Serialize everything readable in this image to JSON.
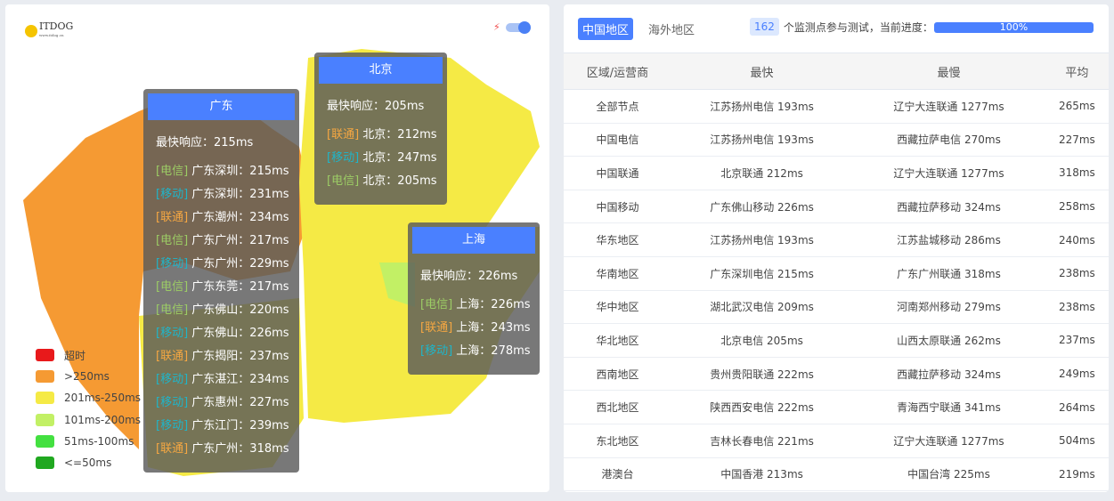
{
  "logo": {
    "text": "ITDOG",
    "sub": "www.itdog.cn"
  },
  "legend": [
    {
      "label": "超时",
      "color": "#e8191b"
    },
    {
      "label": ">250ms",
      "color": "#f59a33"
    },
    {
      "label": "201ms-250ms",
      "color": "#f5ea45"
    },
    {
      "label": "101ms-200ms",
      "color": "#c2f065"
    },
    {
      "label": "51ms-100ms",
      "color": "#43e040"
    },
    {
      "label": "<=50ms",
      "color": "#20a820"
    }
  ],
  "tooltips": {
    "guangdong": {
      "title": "广东",
      "fastest": "最快响应：215ms",
      "rows": [
        {
          "isp": "[电信]",
          "cls": "dx",
          "text": "广东深圳：215ms"
        },
        {
          "isp": "[移动]",
          "cls": "yd",
          "text": "广东深圳：231ms"
        },
        {
          "isp": "[联通]",
          "cls": "lt",
          "text": "广东潮州：234ms"
        },
        {
          "isp": "[电信]",
          "cls": "dx",
          "text": "广东广州：217ms"
        },
        {
          "isp": "[移动]",
          "cls": "yd",
          "text": "广东广州：229ms"
        },
        {
          "isp": "[电信]",
          "cls": "dx",
          "text": "广东东莞：217ms"
        },
        {
          "isp": "[电信]",
          "cls": "dx",
          "text": "广东佛山：220ms"
        },
        {
          "isp": "[移动]",
          "cls": "yd",
          "text": "广东佛山：226ms"
        },
        {
          "isp": "[联通]",
          "cls": "lt",
          "text": "广东揭阳：237ms"
        },
        {
          "isp": "[移动]",
          "cls": "yd",
          "text": "广东湛江：234ms"
        },
        {
          "isp": "[移动]",
          "cls": "yd",
          "text": "广东惠州：227ms"
        },
        {
          "isp": "[移动]",
          "cls": "yd",
          "text": "广东江门：239ms"
        },
        {
          "isp": "[联通]",
          "cls": "lt",
          "text": "广东广州：318ms"
        }
      ]
    },
    "beijing": {
      "title": "北京",
      "fastest": "最快响应：205ms",
      "rows": [
        {
          "isp": "[联通]",
          "cls": "lt",
          "text": "北京：212ms"
        },
        {
          "isp": "[移动]",
          "cls": "yd",
          "text": "北京：247ms"
        },
        {
          "isp": "[电信]",
          "cls": "dx",
          "text": "北京：205ms"
        }
      ]
    },
    "shanghai": {
      "title": "上海",
      "fastest": "最快响应：226ms",
      "rows": [
        {
          "isp": "[电信]",
          "cls": "dx",
          "text": "上海：226ms"
        },
        {
          "isp": "[联通]",
          "cls": "lt",
          "text": "上海：243ms"
        },
        {
          "isp": "[移动]",
          "cls": "yd",
          "text": "上海：278ms"
        }
      ]
    }
  },
  "tabs": [
    {
      "label": "中国地区",
      "active": true
    },
    {
      "label": "海外地区",
      "active": false
    }
  ],
  "count": "162",
  "count_text": "个监测点参与测试，当前进度：",
  "progress": {
    "value": 100,
    "label": "100%"
  },
  "table": {
    "headers": [
      "区域/运营商",
      "最快",
      "最慢",
      "平均"
    ],
    "rows": [
      [
        "全部节点",
        "江苏扬州电信 193ms",
        "辽宁大连联通 1277ms",
        "265ms"
      ],
      [
        "中国电信",
        "江苏扬州电信 193ms",
        "西藏拉萨电信 270ms",
        "227ms"
      ],
      [
        "中国联通",
        "北京联通 212ms",
        "辽宁大连联通 1277ms",
        "318ms"
      ],
      [
        "中国移动",
        "广东佛山移动 226ms",
        "西藏拉萨移动 324ms",
        "258ms"
      ],
      [
        "华东地区",
        "江苏扬州电信 193ms",
        "江苏盐城移动 286ms",
        "240ms"
      ],
      [
        "华南地区",
        "广东深圳电信 215ms",
        "广东广州联通 318ms",
        "238ms"
      ],
      [
        "华中地区",
        "湖北武汉电信 209ms",
        "河南郑州移动 279ms",
        "238ms"
      ],
      [
        "华北地区",
        "北京电信 205ms",
        "山西太原联通 262ms",
        "237ms"
      ],
      [
        "西南地区",
        "贵州贵阳联通 222ms",
        "西藏拉萨移动 324ms",
        "249ms"
      ],
      [
        "西北地区",
        "陕西西安电信 222ms",
        "青海西宁联通 341ms",
        "264ms"
      ],
      [
        "东北地区",
        "吉林长春电信 221ms",
        "辽宁大连联通 1277ms",
        "504ms"
      ],
      [
        "港澳台",
        "中国香港 213ms",
        "中国台湾 225ms",
        "219ms"
      ]
    ]
  }
}
